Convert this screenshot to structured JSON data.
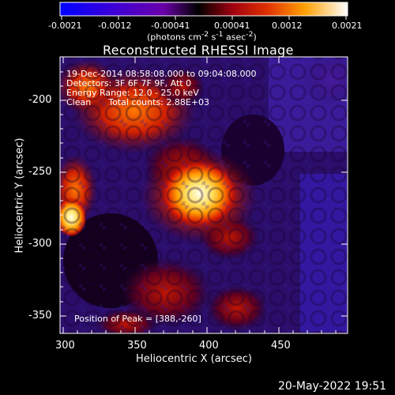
{
  "colorbar": {
    "ticks": [
      "-0.0021",
      "-0.0012",
      "-0.00041",
      "0.00041",
      "0.0012",
      "0.0021"
    ],
    "units_html": "(photons cm<sup>-2</sup> s<sup>-1</sup> asec<sup>-2</sup>)",
    "units": "(photons cm-2 s-1 asec-2)"
  },
  "title": "Reconstructed RHESSI Image",
  "annotation": {
    "line1": "19-Dec-2014 08:58:08.000 to 09:04:08.000",
    "line2": "Detectors: 3F 6F 7F 9F, Att 0",
    "line3": "Energy Range: 12.0 - 25.0 keV",
    "line4_left": "Clean",
    "line4_right": "Total counts: 2.88E+03",
    "peak": "Position of Peak = [388,-260]"
  },
  "axes": {
    "xlabel": "Heliocentric X (arcsec)",
    "ylabel": "Heliocentric Y (arcsec)",
    "xticks": [
      "300",
      "350",
      "400",
      "450"
    ],
    "yticks": [
      "-200",
      "-250",
      "-300",
      "-350"
    ]
  },
  "timestamp": "20-May-2022 19:51"
}
